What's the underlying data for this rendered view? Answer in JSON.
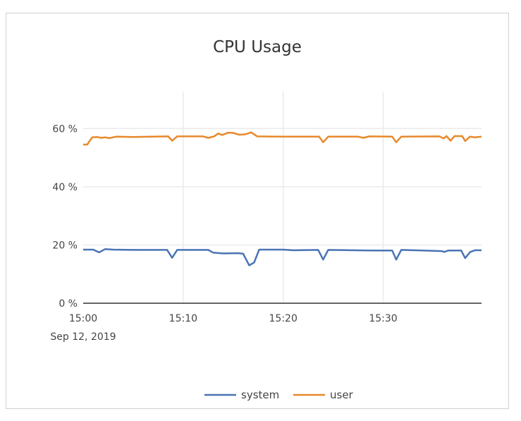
{
  "chart_data": {
    "type": "line",
    "title": "CPU Usage",
    "xlabel": "",
    "ylabel": "",
    "x_ticks": [
      "15:00",
      "15:10",
      "15:20",
      "15:30"
    ],
    "x_sublabel": "Sep 12, 2019",
    "y_ticks": [
      "0 %",
      "20 %",
      "40 %",
      "60 %"
    ],
    "ylim": [
      0,
      70
    ],
    "xlim": [
      "15:00",
      "15:39:50"
    ],
    "grid": true,
    "legend": "bottom",
    "series": [
      {
        "name": "system",
        "color": "#4a74b4",
        "points": [
          [
            "15:00:00",
            18.4
          ],
          [
            "15:01:00",
            18.4
          ],
          [
            "15:01:36",
            17.5
          ],
          [
            "15:02:12",
            18.6
          ],
          [
            "15:03:00",
            18.4
          ],
          [
            "15:05:00",
            18.3
          ],
          [
            "15:08:24",
            18.3
          ],
          [
            "15:08:54",
            15.6
          ],
          [
            "15:09:24",
            18.3
          ],
          [
            "15:12:30",
            18.3
          ],
          [
            "15:13:00",
            17.4
          ],
          [
            "15:14:00",
            17.1
          ],
          [
            "15:15:30",
            17.2
          ],
          [
            "15:16:00",
            17.0
          ],
          [
            "15:16:36",
            13.0
          ],
          [
            "15:17:06",
            14.0
          ],
          [
            "15:17:36",
            18.4
          ],
          [
            "15:20:00",
            18.4
          ],
          [
            "15:21:00",
            18.2
          ],
          [
            "15:23:30",
            18.3
          ],
          [
            "15:24:00",
            15.0
          ],
          [
            "15:24:30",
            18.3
          ],
          [
            "15:27:00",
            18.2
          ],
          [
            "15:29:00",
            18.1
          ],
          [
            "15:30:54",
            18.1
          ],
          [
            "15:31:18",
            15.0
          ],
          [
            "15:31:48",
            18.3
          ],
          [
            "15:34:00",
            18.1
          ],
          [
            "15:35:54",
            17.9
          ],
          [
            "15:36:06",
            17.6
          ],
          [
            "15:36:30",
            18.1
          ],
          [
            "15:37:48",
            18.1
          ],
          [
            "15:38:12",
            15.5
          ],
          [
            "15:38:42",
            17.6
          ],
          [
            "15:39:10",
            18.2
          ],
          [
            "15:39:50",
            18.2
          ]
        ]
      },
      {
        "name": "user",
        "color": "#e8892b",
        "points": [
          [
            "15:00:00",
            54.5
          ],
          [
            "15:00:24",
            54.5
          ],
          [
            "15:00:54",
            57.0
          ],
          [
            "15:01:24",
            57.1
          ],
          [
            "15:01:48",
            56.8
          ],
          [
            "15:02:12",
            57.0
          ],
          [
            "15:02:36",
            56.7
          ],
          [
            "15:03:18",
            57.2
          ],
          [
            "15:05:00",
            57.1
          ],
          [
            "15:08:30",
            57.3
          ],
          [
            "15:08:54",
            55.8
          ],
          [
            "15:09:24",
            57.3
          ],
          [
            "15:12:00",
            57.3
          ],
          [
            "15:12:30",
            56.8
          ],
          [
            "15:13:06",
            57.3
          ],
          [
            "15:13:30",
            58.3
          ],
          [
            "15:13:54",
            57.8
          ],
          [
            "15:14:30",
            58.6
          ],
          [
            "15:15:00",
            58.5
          ],
          [
            "15:15:36",
            57.9
          ],
          [
            "15:16:12",
            58.0
          ],
          [
            "15:16:48",
            58.7
          ],
          [
            "15:17:24",
            57.3
          ],
          [
            "15:20:00",
            57.2
          ],
          [
            "15:23:36",
            57.2
          ],
          [
            "15:24:00",
            55.3
          ],
          [
            "15:24:30",
            57.2
          ],
          [
            "15:27:30",
            57.2
          ],
          [
            "15:28:00",
            56.8
          ],
          [
            "15:28:36",
            57.3
          ],
          [
            "15:30:54",
            57.2
          ],
          [
            "15:31:18",
            55.3
          ],
          [
            "15:31:48",
            57.2
          ],
          [
            "15:35:36",
            57.3
          ],
          [
            "15:36:03",
            56.6
          ],
          [
            "15:36:20",
            57.4
          ],
          [
            "15:36:44",
            55.8
          ],
          [
            "15:37:08",
            57.4
          ],
          [
            "15:37:54",
            57.4
          ],
          [
            "15:38:12",
            55.7
          ],
          [
            "15:38:40",
            57.2
          ],
          [
            "15:39:10",
            57.0
          ],
          [
            "15:39:50",
            57.2
          ]
        ]
      }
    ]
  }
}
